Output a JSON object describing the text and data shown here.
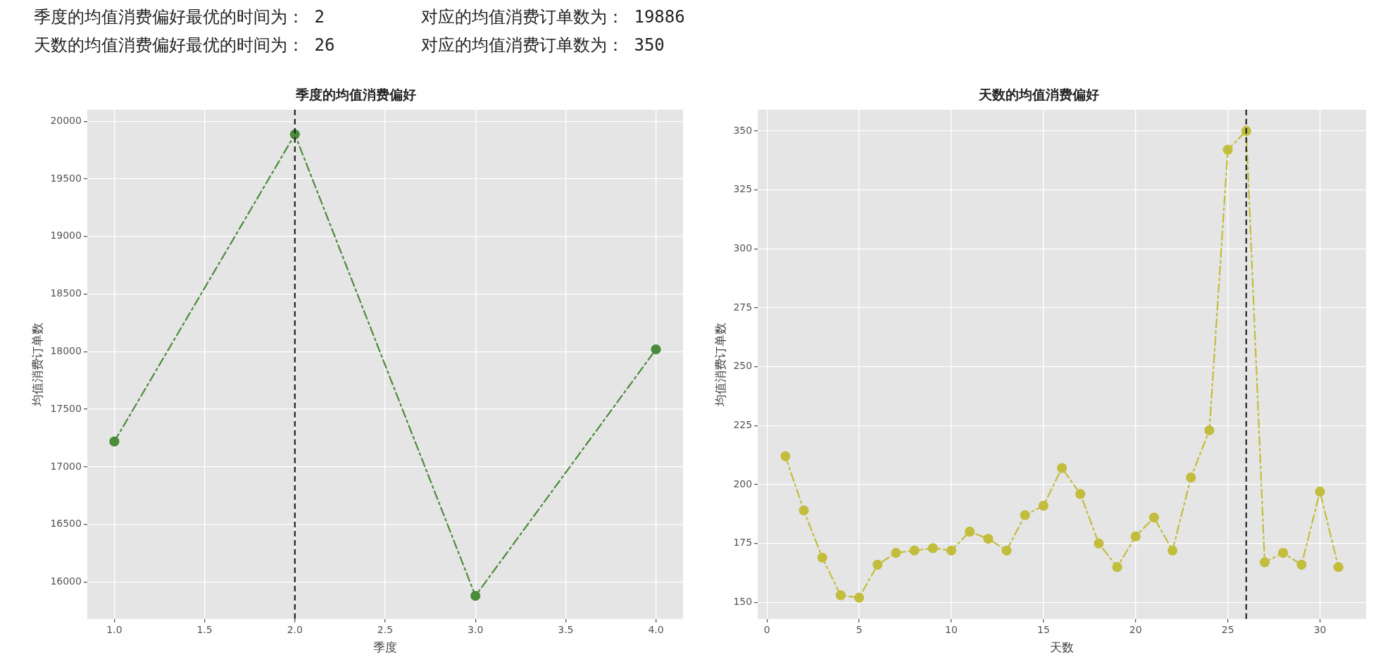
{
  "chart_data": [
    {
      "type": "other",
      "annotations": [
        "季度的均值消费偏好最优的时间为： 2",
        "对应的均值消费订单数为： 19886",
        "天数的均值消费偏好最优的时间为： 26",
        "对应的均值消费订单数为： 350"
      ]
    },
    {
      "type": "line",
      "title": "季度的均值消费偏好",
      "xlabel": "季度",
      "ylabel": "均值消费订单数",
      "x": [
        1,
        2,
        3,
        4
      ],
      "series": [
        {
          "color": "#4a8c3a",
          "values": [
            17220,
            19886,
            15880,
            18020
          ]
        }
      ],
      "xlim": [
        0.85,
        4.15
      ],
      "xticks": [
        {
          "value": 1,
          "label": "1.0"
        },
        {
          "value": 1.5,
          "label": "1.5"
        },
        {
          "value": 2,
          "label": "2.0"
        },
        {
          "value": 2.5,
          "label": "2.5"
        },
        {
          "value": 3,
          "label": "3.0"
        },
        {
          "value": 3.5,
          "label": "3.5"
        },
        {
          "value": 4,
          "label": "4.0"
        }
      ],
      "ylim": [
        15680,
        20100
      ],
      "yticks": [
        16000,
        16500,
        17000,
        17500,
        18000,
        18500,
        19000,
        19500,
        20000
      ],
      "ref_lines": [
        {
          "axis": "x",
          "value": 2,
          "color": "#222222",
          "line_style": "dashed"
        }
      ],
      "grid": true,
      "marker": "circle",
      "line_style": "dashed"
    },
    {
      "type": "line",
      "title": "天数的均值消费偏好",
      "xlabel": "天数",
      "ylabel": "均值消费订单数",
      "x": [
        1,
        2,
        3,
        4,
        5,
        6,
        7,
        8,
        9,
        10,
        11,
        12,
        13,
        14,
        15,
        16,
        17,
        18,
        19,
        20,
        21,
        22,
        23,
        24,
        25,
        26,
        27,
        28,
        29,
        30,
        31
      ],
      "series": [
        {
          "color": "#c2bd3c",
          "values": [
            212,
            189,
            169,
            153,
            152,
            166,
            171,
            172,
            173,
            172,
            180,
            177,
            172,
            187,
            191,
            207,
            196,
            175,
            165,
            178,
            186,
            172,
            203,
            223,
            342,
            350,
            167,
            171,
            166,
            197,
            165
          ]
        }
      ],
      "xlim": [
        -0.5,
        32.5
      ],
      "xticks": [
        0,
        5,
        10,
        15,
        20,
        25,
        30
      ],
      "ylim": [
        143,
        359
      ],
      "yticks": [
        150,
        175,
        200,
        225,
        250,
        275,
        300,
        325,
        350
      ],
      "ref_lines": [
        {
          "axis": "x",
          "value": 26,
          "color": "#222222",
          "line_style": "dashed"
        }
      ],
      "grid": true,
      "marker": "circle",
      "line_style": "dashed"
    }
  ]
}
